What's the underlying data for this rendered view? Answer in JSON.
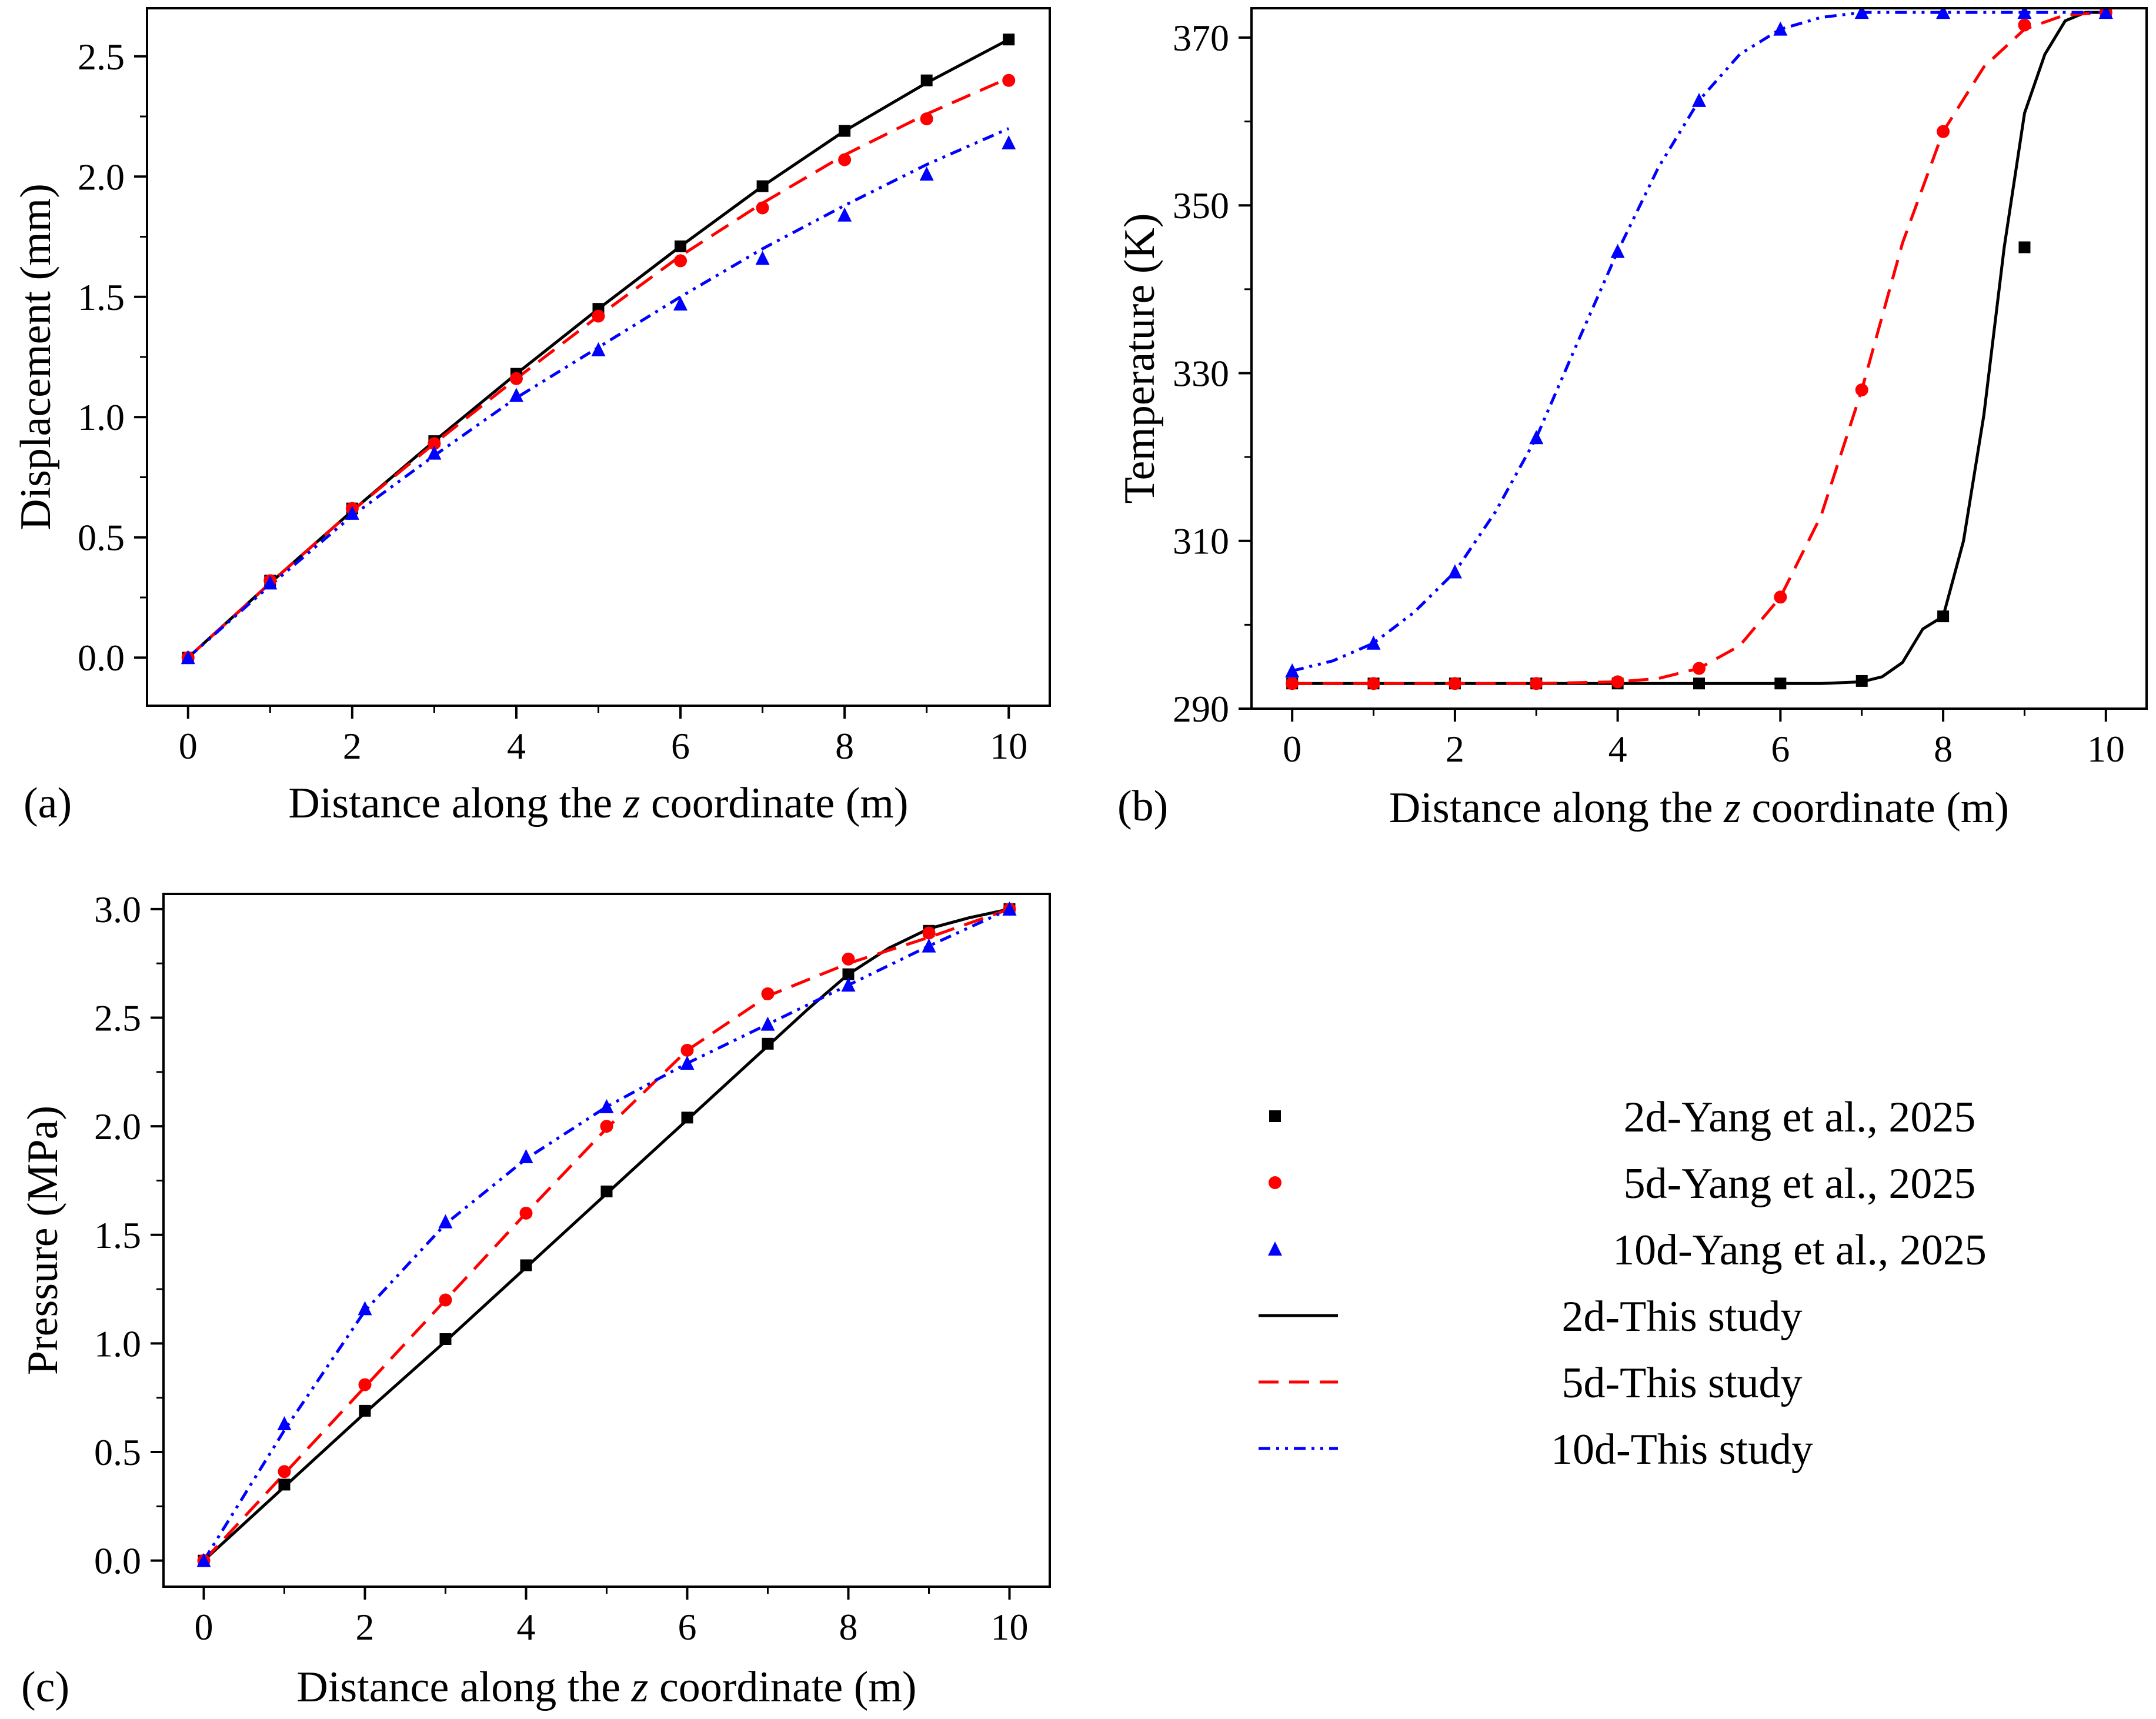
{
  "figure": {
    "legend": {
      "entries": [
        {
          "label": "2d-Yang et al., 2025",
          "kind": "marker",
          "marker": "square",
          "color": "#000000"
        },
        {
          "label": "5d-Yang et al., 2025",
          "kind": "marker",
          "marker": "circle",
          "color": "#ff0000"
        },
        {
          "label": "10d-Yang et al., 2025",
          "kind": "marker",
          "marker": "triangle",
          "color": "#0000ff"
        },
        {
          "label": "2d-This study",
          "kind": "line",
          "dash": "solid",
          "color": "#000000"
        },
        {
          "label": "5d-This study",
          "kind": "line",
          "dash": "dashed",
          "color": "#ff0000"
        },
        {
          "label": "10d-This study",
          "kind": "line",
          "dash": "dashdotdot",
          "color": "#0000ff"
        }
      ]
    }
  },
  "chart_data": [
    {
      "id": "a",
      "panel_label": "(a)",
      "type": "line",
      "xlabel_parts": [
        "Distance along the ",
        "z",
        " coordinate (m)"
      ],
      "ylabel": "Displacement (mm)",
      "xlim": [
        -0.5,
        10.5
      ],
      "ylim": [
        -0.2,
        2.7
      ],
      "xticks": [
        0,
        2,
        4,
        6,
        8,
        10
      ],
      "xtick_labels": [
        "0",
        "2",
        "4",
        "6",
        "8",
        "10"
      ],
      "yticks": [
        0,
        0.5,
        1.0,
        1.5,
        2.0,
        2.5
      ],
      "ytick_labels": [
        "0.0",
        "0.5",
        "1.0",
        "1.5",
        "2.0",
        "2.5"
      ],
      "series": [
        {
          "name": "2d-Yang et al., 2025",
          "kind": "marker",
          "marker": "square",
          "color": "#000000",
          "x": [
            0,
            1,
            2,
            3,
            4,
            5,
            6,
            7,
            8,
            9,
            10
          ],
          "y": [
            0,
            0.32,
            0.62,
            0.9,
            1.18,
            1.45,
            1.71,
            1.96,
            2.19,
            2.4,
            2.57
          ]
        },
        {
          "name": "5d-Yang et al., 2025",
          "kind": "marker",
          "marker": "circle",
          "color": "#ff0000",
          "x": [
            0,
            1,
            2,
            3,
            4,
            5,
            6,
            7,
            8,
            9,
            10
          ],
          "y": [
            0,
            0.32,
            0.62,
            0.89,
            1.16,
            1.42,
            1.65,
            1.87,
            2.07,
            2.24,
            2.4
          ]
        },
        {
          "name": "10d-Yang et al., 2025",
          "kind": "marker",
          "marker": "triangle",
          "color": "#0000ff",
          "x": [
            0,
            1,
            2,
            3,
            4,
            5,
            6,
            7,
            8,
            9,
            10
          ],
          "y": [
            0,
            0.31,
            0.6,
            0.85,
            1.09,
            1.28,
            1.47,
            1.66,
            1.84,
            2.01,
            2.14
          ]
        },
        {
          "name": "2d-This study",
          "kind": "line",
          "dash": "solid",
          "color": "#000000",
          "x": [
            0,
            1,
            2,
            3,
            4,
            5,
            6,
            7,
            8,
            9,
            10
          ],
          "y": [
            0,
            0.31,
            0.61,
            0.9,
            1.18,
            1.45,
            1.71,
            1.96,
            2.19,
            2.39,
            2.57
          ]
        },
        {
          "name": "5d-This study",
          "kind": "line",
          "dash": "dashed",
          "color": "#ff0000",
          "x": [
            0,
            1,
            2,
            3,
            4,
            5,
            6,
            7,
            8,
            9,
            10
          ],
          "y": [
            0,
            0.31,
            0.61,
            0.89,
            1.16,
            1.42,
            1.67,
            1.89,
            2.09,
            2.26,
            2.41
          ]
        },
        {
          "name": "10d-This study",
          "kind": "line",
          "dash": "dashdotdot",
          "color": "#0000ff",
          "x": [
            0,
            1,
            2,
            3,
            4,
            5,
            6,
            7,
            8,
            9,
            10
          ],
          "y": [
            0,
            0.3,
            0.59,
            0.84,
            1.08,
            1.29,
            1.5,
            1.7,
            1.88,
            2.05,
            2.2
          ]
        }
      ]
    },
    {
      "id": "b",
      "panel_label": "(b)",
      "type": "line",
      "xlabel_parts": [
        "Distance along the ",
        "z",
        " coordinate (m)"
      ],
      "ylabel": "Temperature (K)",
      "xlim": [
        -0.5,
        10.5
      ],
      "ylim": [
        290,
        373.5
      ],
      "xticks": [
        0,
        2,
        4,
        6,
        8,
        10
      ],
      "xtick_labels": [
        "0",
        "2",
        "4",
        "6",
        "8",
        "10"
      ],
      "yticks": [
        290,
        310,
        330,
        350,
        370
      ],
      "ytick_labels": [
        "290",
        "310",
        "330",
        "350",
        "370"
      ],
      "series": [
        {
          "name": "2d-Yang et al., 2025",
          "kind": "marker",
          "marker": "square",
          "color": "#000000",
          "x": [
            0,
            1,
            2,
            3,
            4,
            5,
            6,
            7,
            8,
            9,
            10
          ],
          "y": [
            293,
            293,
            293,
            293,
            293,
            293,
            293,
            293.3,
            301,
            345,
            373
          ]
        },
        {
          "name": "5d-Yang et al., 2025",
          "kind": "marker",
          "marker": "circle",
          "color": "#ff0000",
          "x": [
            0,
            1,
            2,
            3,
            4,
            5,
            6,
            7,
            8,
            9,
            10
          ],
          "y": [
            293,
            293,
            293,
            293,
            293.2,
            294.8,
            303.3,
            328,
            358.8,
            371.5,
            373
          ]
        },
        {
          "name": "10d-Yang et al., 2025",
          "kind": "marker",
          "marker": "triangle",
          "color": "#0000ff",
          "x": [
            0,
            1,
            2,
            3,
            4,
            5,
            6,
            7,
            8,
            9,
            10
          ],
          "y": [
            294.5,
            297.8,
            306.3,
            322.3,
            344.5,
            362.5,
            371,
            373,
            373,
            373,
            373
          ]
        },
        {
          "name": "2d-This study",
          "kind": "line",
          "dash": "solid",
          "color": "#000000",
          "x": [
            0,
            1,
            2,
            3,
            4,
            5,
            6,
            6.5,
            7,
            7.25,
            7.5,
            7.75,
            8,
            8.25,
            8.5,
            8.75,
            9,
            9.25,
            9.5,
            9.75,
            10
          ],
          "y": [
            293,
            293,
            293,
            293,
            293,
            293,
            293,
            293,
            293.2,
            293.8,
            295.5,
            299.5,
            301,
            310,
            325,
            345,
            361,
            368,
            372,
            373,
            373
          ]
        },
        {
          "name": "5d-This study",
          "kind": "line",
          "dash": "dashed",
          "color": "#ff0000",
          "x": [
            0,
            1,
            2,
            3,
            4,
            4.5,
            5,
            5.5,
            6,
            6.5,
            7,
            7.5,
            8,
            8.5,
            9,
            9.5,
            10
          ],
          "y": [
            293,
            293,
            293,
            293,
            293.2,
            293.6,
            294.8,
            297.5,
            303.3,
            313,
            328,
            345.5,
            358.8,
            366.5,
            371,
            372.7,
            373
          ]
        },
        {
          "name": "10d-This study",
          "kind": "line",
          "dash": "dashdotdot",
          "color": "#0000ff",
          "x": [
            0,
            0.5,
            1,
            1.5,
            2,
            2.5,
            3,
            3.5,
            4,
            4.5,
            5,
            5.5,
            6,
            6.5,
            7,
            8,
            9,
            10
          ],
          "y": [
            294.5,
            295.7,
            297.8,
            301.5,
            306.3,
            313.5,
            322.3,
            333.5,
            344.5,
            354.5,
            362.5,
            368,
            371,
            372.4,
            373,
            373,
            373,
            373
          ]
        }
      ]
    },
    {
      "id": "c",
      "panel_label": "(c)",
      "type": "line",
      "xlabel_parts": [
        "Distance along the ",
        "z",
        " coordinate (m)"
      ],
      "ylabel": "Pressure (MPa)",
      "xlim": [
        -0.5,
        10.5
      ],
      "ylim": [
        -0.12,
        3.07
      ],
      "xticks": [
        0,
        2,
        4,
        6,
        8,
        10
      ],
      "xtick_labels": [
        "0",
        "2",
        "4",
        "6",
        "8",
        "10"
      ],
      "yticks": [
        0,
        0.5,
        1.0,
        1.5,
        2.0,
        2.5,
        3.0
      ],
      "ytick_labels": [
        "0.0",
        "0.5",
        "1.0",
        "1.5",
        "2.0",
        "2.5",
        "3.0"
      ],
      "series": [
        {
          "name": "2d-Yang et al., 2025",
          "kind": "marker",
          "marker": "square",
          "color": "#000000",
          "x": [
            0,
            1,
            2,
            3,
            4,
            5,
            6,
            7,
            8,
            9,
            10
          ],
          "y": [
            0,
            0.35,
            0.69,
            1.02,
            1.36,
            1.7,
            2.04,
            2.38,
            2.7,
            2.9,
            3.0
          ]
        },
        {
          "name": "5d-Yang et al., 2025",
          "kind": "marker",
          "marker": "circle",
          "color": "#ff0000",
          "x": [
            0,
            1,
            2,
            3,
            4,
            5,
            6,
            7,
            8,
            9,
            10
          ],
          "y": [
            0,
            0.41,
            0.81,
            1.2,
            1.6,
            2.0,
            2.35,
            2.61,
            2.77,
            2.89,
            3.0
          ]
        },
        {
          "name": "10d-Yang et al., 2025",
          "kind": "marker",
          "marker": "triangle",
          "color": "#0000ff",
          "x": [
            0,
            1,
            2,
            3,
            4,
            5,
            6,
            7,
            8,
            9,
            10
          ],
          "y": [
            0,
            0.63,
            1.16,
            1.56,
            1.86,
            2.09,
            2.29,
            2.47,
            2.65,
            2.83,
            3.0
          ]
        },
        {
          "name": "2d-This study",
          "kind": "line",
          "dash": "solid",
          "color": "#000000",
          "x": [
            0,
            1,
            2,
            3,
            4,
            5,
            6,
            7,
            7.5,
            8,
            8.5,
            9,
            9.5,
            10
          ],
          "y": [
            0,
            0.34,
            0.68,
            1.01,
            1.35,
            1.69,
            2.03,
            2.37,
            2.54,
            2.7,
            2.82,
            2.91,
            2.96,
            3.0
          ]
        },
        {
          "name": "5d-This study",
          "kind": "line",
          "dash": "dashed",
          "color": "#ff0000",
          "x": [
            0,
            1,
            2,
            3,
            4,
            5,
            6,
            7,
            8,
            9,
            10
          ],
          "y": [
            0,
            0.4,
            0.8,
            1.2,
            1.6,
            1.99,
            2.35,
            2.6,
            2.75,
            2.87,
            3.0
          ]
        },
        {
          "name": "10d-This study",
          "kind": "line",
          "dash": "dashdotdot",
          "color": "#0000ff",
          "x": [
            0,
            1,
            2,
            3,
            4,
            5,
            6,
            7,
            8,
            9,
            10
          ],
          "y": [
            0,
            0.6,
            1.15,
            1.55,
            1.85,
            2.09,
            2.29,
            2.47,
            2.65,
            2.83,
            3.0
          ]
        }
      ]
    }
  ]
}
